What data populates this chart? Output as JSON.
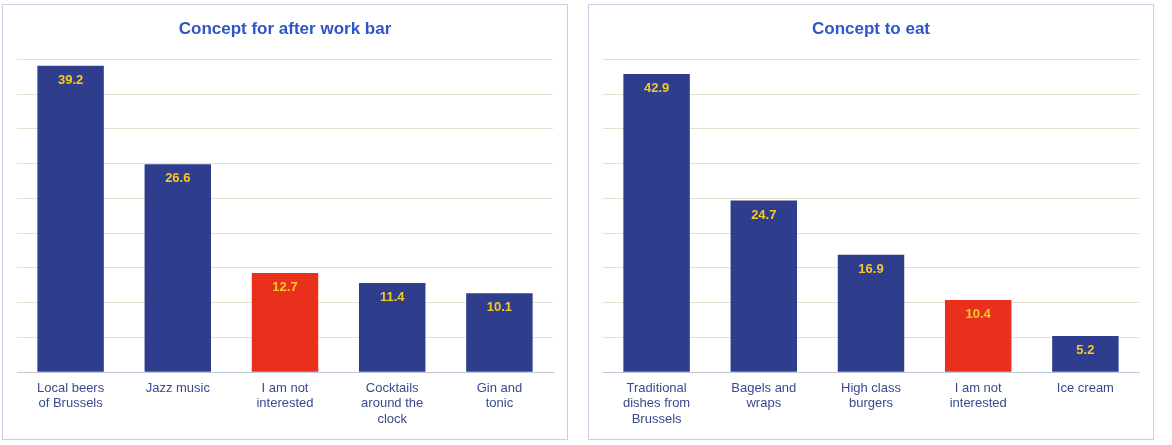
{
  "chart_data": [
    {
      "type": "bar",
      "title": "Concept for after work bar",
      "categories": [
        "Local beers of Brussels",
        "Jazz music",
        "I am not interested",
        "Cocktails around the clock",
        "Gin and tonic"
      ],
      "values": [
        39.2,
        26.6,
        12.7,
        11.4,
        10.1
      ],
      "colors": [
        "#2e3d8c",
        "#2e3d8c",
        "#e8301c",
        "#2e3d8c",
        "#2e3d8c"
      ],
      "data_labels": true,
      "grid": "y",
      "tick_labels": "x"
    },
    {
      "type": "bar",
      "title": "Concept to eat",
      "categories": [
        "Traditional dishes from Brussels",
        "Bagels and wraps",
        "High class burgers",
        "I am not interested",
        "Ice cream"
      ],
      "values": [
        42.9,
        24.7,
        16.9,
        10.4,
        5.2
      ],
      "colors": [
        "#2e3d8c",
        "#2e3d8c",
        "#2e3d8c",
        "#e8301c",
        "#2e3d8c"
      ],
      "data_labels": true,
      "grid": "y",
      "tick_labels": "x"
    }
  ]
}
